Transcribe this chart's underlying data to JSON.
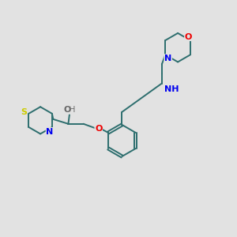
{
  "bg_color": "#e2e2e2",
  "bond_color": "#2d6e6e",
  "n_color": "#0000ee",
  "o_color": "#ee0000",
  "s_color": "#cccc00",
  "h_color": "#666666",
  "bond_lw": 1.4,
  "figsize": [
    3.0,
    3.0
  ],
  "dpi": 100,
  "xlim": [
    0,
    10
  ],
  "ylim": [
    0,
    10
  ]
}
